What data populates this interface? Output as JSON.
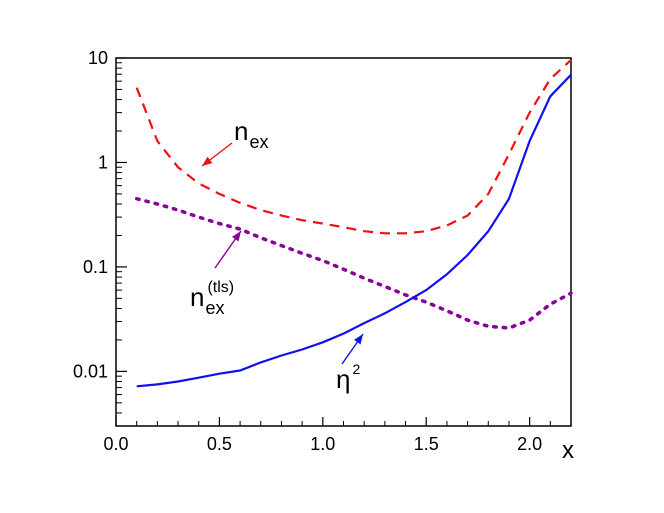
{
  "chart_data": {
    "type": "line",
    "title": "",
    "xlabel": "x",
    "ylabel": "",
    "xlim": [
      0,
      2.2
    ],
    "ylim": [
      0.003,
      10
    ],
    "yscale": "log",
    "grid": false,
    "legend": "none (curves labeled by annotations with arrows)",
    "x_ticks": [
      {
        "value": 0.0,
        "label": "0.0"
      },
      {
        "value": 0.5,
        "label": "0.5"
      },
      {
        "value": 1.0,
        "label": "1.0"
      },
      {
        "value": 1.5,
        "label": "1.5"
      },
      {
        "value": 2.0,
        "label": "2.0"
      }
    ],
    "y_ticks": [
      {
        "value": 0.01,
        "label": "0.01"
      },
      {
        "value": 0.1,
        "label": "0.1"
      },
      {
        "value": 1,
        "label": "1"
      },
      {
        "value": 10,
        "label": "10"
      }
    ],
    "series": [
      {
        "key": "nex",
        "color": "#ee1111",
        "style": "dashed",
        "x": [
          0.1,
          0.2,
          0.3,
          0.4,
          0.5,
          0.6,
          0.7,
          0.8,
          0.9,
          1.0,
          1.1,
          1.2,
          1.3,
          1.4,
          1.5,
          1.6,
          1.7,
          1.8,
          1.9,
          2.0,
          2.1,
          2.2
        ],
        "y": [
          5.2,
          1.6,
          0.9,
          0.63,
          0.5,
          0.41,
          0.35,
          0.31,
          0.28,
          0.26,
          0.24,
          0.22,
          0.21,
          0.21,
          0.22,
          0.25,
          0.31,
          0.5,
          1.2,
          3.0,
          6.3,
          9.6
        ]
      },
      {
        "key": "nex_tls",
        "color": "#880099",
        "style": "dotted",
        "x": [
          0.1,
          0.2,
          0.3,
          0.4,
          0.5,
          0.6,
          0.7,
          0.8,
          0.9,
          1.0,
          1.1,
          1.2,
          1.3,
          1.4,
          1.5,
          1.6,
          1.7,
          1.8,
          1.9,
          2.0,
          2.1,
          2.2
        ],
        "y": [
          0.45,
          0.4,
          0.35,
          0.3,
          0.26,
          0.23,
          0.19,
          0.16,
          0.135,
          0.115,
          0.095,
          0.078,
          0.065,
          0.054,
          0.046,
          0.038,
          0.031,
          0.027,
          0.026,
          0.031,
          0.044,
          0.056
        ]
      },
      {
        "key": "eta2",
        "color": "#1111ee",
        "style": "solid",
        "x": [
          0.1,
          0.2,
          0.3,
          0.4,
          0.5,
          0.6,
          0.7,
          0.8,
          0.9,
          1.0,
          1.1,
          1.2,
          1.3,
          1.4,
          1.5,
          1.6,
          1.7,
          1.8,
          1.9,
          2.0,
          2.1,
          2.2
        ],
        "y": [
          0.0072,
          0.0075,
          0.008,
          0.0087,
          0.0095,
          0.0102,
          0.0122,
          0.0142,
          0.0162,
          0.019,
          0.023,
          0.029,
          0.036,
          0.046,
          0.06,
          0.085,
          0.13,
          0.22,
          0.45,
          1.6,
          4.3,
          6.9
        ]
      }
    ],
    "annotations": [
      {
        "key": "nex",
        "base": "n",
        "sub": "ex",
        "sup": ""
      },
      {
        "key": "nex_tls",
        "base": "n",
        "sub": "ex",
        "sup": "(tls)"
      },
      {
        "key": "eta2",
        "base": "η",
        "sub": "",
        "sup": "2"
      }
    ]
  }
}
